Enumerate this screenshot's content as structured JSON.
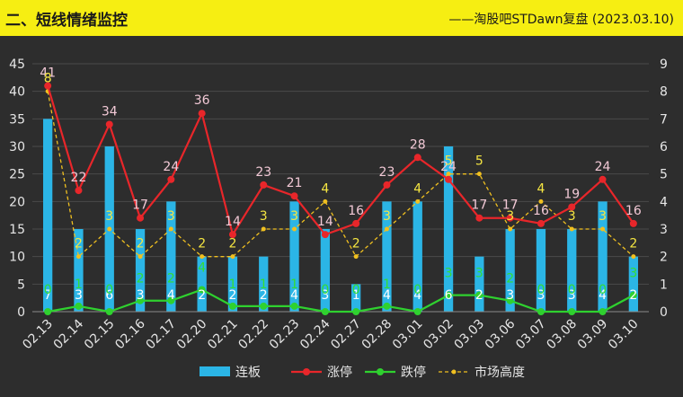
{
  "header": {
    "title": "二、短线情绪监控",
    "source": "——淘股吧STDawn复盘 (2023.03.10)"
  },
  "colors": {
    "header_bg": "#f6ee12",
    "plot_bg": "#2d2d2d",
    "bar": "#2bb5e6",
    "limit_up": "#e8262a",
    "limit_down": "#2fd12f",
    "market_height": "#f0c020",
    "label_limit_up": "#f2c9d6",
    "label_limit_down": "#33dd33",
    "label_market_height": "#f5e642",
    "label_bar": "#ffffff"
  },
  "chart_data": {
    "type": "bar+line",
    "categories": [
      "02.13",
      "02.14",
      "02.15",
      "02.16",
      "02.17",
      "02.20",
      "02.21",
      "02.22",
      "02.23",
      "02.24",
      "02.27",
      "02.28",
      "03.01",
      "03.02",
      "03.03",
      "03.06",
      "03.07",
      "03.08",
      "03.09",
      "03.10"
    ],
    "series": [
      {
        "name": "连板",
        "type": "bar",
        "axis": "right",
        "values": [
          7,
          3,
          6,
          3,
          4,
          2,
          2,
          2,
          4,
          3,
          1,
          4,
          4,
          6,
          2,
          3,
          3,
          3,
          4,
          2
        ]
      },
      {
        "name": "涨停",
        "type": "line",
        "axis": "left",
        "values": [
          41,
          22,
          34,
          17,
          24,
          36,
          14,
          23,
          21,
          14,
          16,
          23,
          28,
          24,
          17,
          17,
          16,
          19,
          24,
          16
        ]
      },
      {
        "name": "跌停",
        "type": "line",
        "axis": "left",
        "values": [
          0,
          1,
          0,
          2,
          2,
          4,
          1,
          1,
          1,
          0,
          0,
          1,
          0,
          3,
          3,
          2,
          0,
          0,
          0,
          3
        ]
      },
      {
        "name": "市场高度",
        "type": "line-dashed",
        "axis": "right",
        "values": [
          8,
          2,
          3,
          2,
          3,
          2,
          2,
          3,
          3,
          4,
          2,
          3,
          4,
          5,
          5,
          3,
          4,
          3,
          3,
          2
        ]
      }
    ],
    "left_axis": {
      "ticks": [
        "0",
        "5",
        "10",
        "15",
        "20",
        "25",
        "30",
        "35",
        "40",
        "45"
      ],
      "range": [
        0,
        45
      ]
    },
    "right_axis": {
      "ticks": [
        "0",
        "1",
        "2",
        "3",
        "4",
        "5",
        "6",
        "7",
        "8",
        "9"
      ],
      "range": [
        0,
        9
      ]
    },
    "grid": true,
    "legend_position": "bottom"
  }
}
